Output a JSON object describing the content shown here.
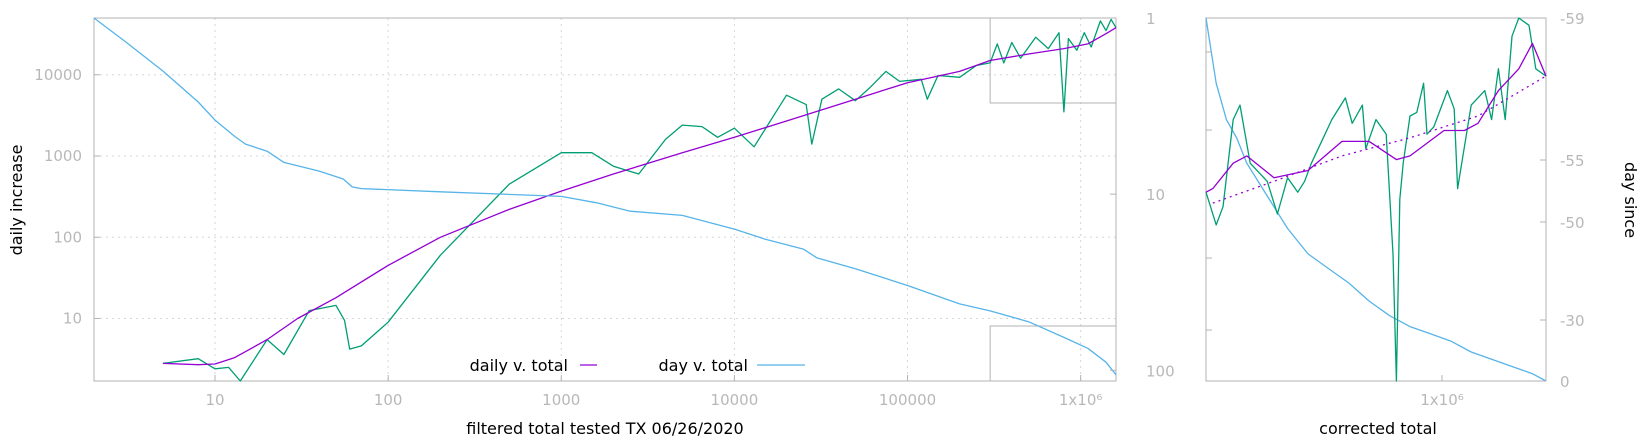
{
  "colors": {
    "daily": "#9400d3",
    "day": "#56b4e9",
    "raw": "#009e73",
    "frame": "#b3b3b3",
    "grid": "#d6d6d6",
    "tick": "#b8b8b8"
  },
  "chart_data": [
    {
      "type": "line",
      "panel": "main",
      "xlabel": "filtered total tested TX 06/26/2020",
      "ylabel": "daily increase",
      "y2label": "",
      "x_scale": "log",
      "y_scale": "log",
      "y2_scale": "log",
      "xlim": [
        2,
        1600000
      ],
      "ylim": [
        1.7,
        50000
      ],
      "y2lim": [
        1,
        115
      ],
      "x_ticks": [
        {
          "value": 10,
          "label": "10"
        },
        {
          "value": 100,
          "label": "100"
        },
        {
          "value": 1000,
          "label": "1000"
        },
        {
          "value": 10000,
          "label": "10000"
        },
        {
          "value": 100000,
          "label": "100000"
        },
        {
          "value": 1000000,
          "label": "1x10⁶"
        }
      ],
      "y_ticks": [
        {
          "value": 10,
          "label": "10"
        },
        {
          "value": 100,
          "label": "100"
        },
        {
          "value": 1000,
          "label": "1000"
        },
        {
          "value": 10000,
          "label": "10000"
        }
      ],
      "y2_ticks": [
        {
          "value": 1,
          "label": "1"
        },
        {
          "value": 10,
          "label": "10"
        },
        {
          "value": 100,
          "label": "100"
        }
      ],
      "grid": true,
      "legend_position": "bottom-center",
      "series": [
        {
          "name": "daily v. total",
          "axis": "left",
          "color": "#9400d3",
          "points": [
            [
              5,
              2.8
            ],
            [
              8,
              2.7
            ],
            [
              10,
              2.75
            ],
            [
              13,
              3.3
            ],
            [
              20,
              5.5
            ],
            [
              30,
              10
            ],
            [
              50,
              18
            ],
            [
              100,
              45
            ],
            [
              200,
              100
            ],
            [
              500,
              220
            ],
            [
              1000,
              370
            ],
            [
              2000,
              600
            ],
            [
              5000,
              1100
            ],
            [
              10000,
              1700
            ],
            [
              20000,
              2700
            ],
            [
              50000,
              5000
            ],
            [
              100000,
              8000
            ],
            [
              200000,
              11000
            ],
            [
              300000,
              15000
            ],
            [
              500000,
              18000
            ],
            [
              800000,
              21000
            ],
            [
              1100000,
              24000
            ],
            [
              1400000,
              32000
            ],
            [
              1600000,
              38000
            ]
          ]
        },
        {
          "name": "day v. total",
          "axis": "right",
          "color": "#56b4e9",
          "points": [
            [
              2,
              1
            ],
            [
              3,
              1.35
            ],
            [
              5,
              2
            ],
            [
              8,
              3
            ],
            [
              10,
              3.8
            ],
            [
              13,
              4.7
            ],
            [
              15,
              5.2
            ],
            [
              20,
              5.7
            ],
            [
              25,
              6.6
            ],
            [
              40,
              7.4
            ],
            [
              55,
              8.2
            ],
            [
              62,
              9.1
            ],
            [
              70,
              9.3
            ],
            [
              200,
              9.7
            ],
            [
              1000,
              10.3
            ],
            [
              1600,
              11.2
            ],
            [
              2500,
              12.5
            ],
            [
              5000,
              13.2
            ],
            [
              10000,
              15.8
            ],
            [
              15000,
              18
            ],
            [
              25000,
              20.5
            ],
            [
              30000,
              23
            ],
            [
              50000,
              26.5
            ],
            [
              100000,
              33
            ],
            [
              200000,
              42
            ],
            [
              300000,
              46
            ],
            [
              500000,
              53
            ],
            [
              800000,
              65
            ],
            [
              1100000,
              75
            ],
            [
              1400000,
              90
            ],
            [
              1600000,
              106
            ]
          ]
        },
        {
          "name": "",
          "axis": "left",
          "color": "#009e73",
          "points": [
            [
              5,
              2.8
            ],
            [
              8,
              3.2
            ],
            [
              10,
              2.4
            ],
            [
              12,
              2.5
            ],
            [
              14,
              1.7
            ],
            [
              20,
              5.5
            ],
            [
              25,
              3.6
            ],
            [
              35,
              12.5
            ],
            [
              50,
              14.5
            ],
            [
              56,
              9.5
            ],
            [
              60,
              4.2
            ],
            [
              70,
              4.6
            ],
            [
              100,
              9
            ],
            [
              200,
              60
            ],
            [
              500,
              450
            ],
            [
              1000,
              1100
            ],
            [
              1500,
              1100
            ],
            [
              2000,
              750
            ],
            [
              2800,
              600
            ],
            [
              4000,
              1600
            ],
            [
              5000,
              2400
            ],
            [
              6500,
              2300
            ],
            [
              8000,
              1700
            ],
            [
              10000,
              2200
            ],
            [
              13000,
              1300
            ],
            [
              20000,
              5600
            ],
            [
              26000,
              4300
            ],
            [
              28000,
              1400
            ],
            [
              32000,
              5000
            ],
            [
              40000,
              6700
            ],
            [
              50000,
              4800
            ],
            [
              60000,
              6800
            ],
            [
              75000,
              11000
            ],
            [
              90000,
              8300
            ],
            [
              120000,
              8800
            ],
            [
              130000,
              5000
            ],
            [
              150000,
              9800
            ],
            [
              200000,
              9300
            ],
            [
              250000,
              13000
            ],
            [
              300000,
              14000
            ],
            [
              330000,
              24000
            ],
            [
              360000,
              14000
            ],
            [
              400000,
              25000
            ],
            [
              450000,
              16000
            ],
            [
              550000,
              29000
            ],
            [
              650000,
              21000
            ],
            [
              750000,
              33000
            ],
            [
              800000,
              3500
            ],
            [
              850000,
              28000
            ],
            [
              950000,
              20000
            ],
            [
              1050000,
              33000
            ],
            [
              1150000,
              22000
            ],
            [
              1300000,
              46000
            ],
            [
              1400000,
              35000
            ],
            [
              1500000,
              48000
            ],
            [
              1600000,
              38000
            ]
          ]
        }
      ]
    },
    {
      "type": "line",
      "panel": "inset",
      "xlabel": "corrected total",
      "y2label": "day since",
      "x_scale": "log",
      "x_ticks": [
        {
          "value": 1000000,
          "label": "1x10⁶"
        }
      ],
      "y2_ticks": [
        {
          "value": -59,
          "label": "-59"
        },
        {
          "value": -55,
          "label": "-55"
        },
        {
          "value": -50,
          "label": "-50"
        },
        {
          "value": -30,
          "label": "-30"
        },
        {
          "value": 0,
          "label": "0"
        }
      ],
      "series": [
        {
          "name": "",
          "color": "#9400d3",
          "dash": "solid",
          "points": [
            [
              0,
              0.52
            ],
            [
              0.02,
              0.53
            ],
            [
              0.08,
              0.6
            ],
            [
              0.12,
              0.62
            ],
            [
              0.2,
              0.56
            ],
            [
              0.3,
              0.58
            ],
            [
              0.4,
              0.66
            ],
            [
              0.48,
              0.66
            ],
            [
              0.56,
              0.61
            ],
            [
              0.6,
              0.62
            ],
            [
              0.7,
              0.69
            ],
            [
              0.76,
              0.69
            ],
            [
              0.8,
              0.71
            ],
            [
              0.86,
              0.8
            ],
            [
              0.92,
              0.86
            ],
            [
              0.96,
              0.93
            ],
            [
              1,
              0.84
            ]
          ]
        },
        {
          "name": "",
          "color": "#9400d3",
          "dash": "dotted",
          "points": [
            [
              0.02,
              0.49
            ],
            [
              0.2,
              0.55
            ],
            [
              0.4,
              0.62
            ],
            [
              0.6,
              0.67
            ],
            [
              0.8,
              0.73
            ],
            [
              1,
              0.84
            ]
          ]
        },
        {
          "name": "",
          "color": "#009e73",
          "points": [
            [
              0,
              0.52
            ],
            [
              0.03,
              0.43
            ],
            [
              0.05,
              0.48
            ],
            [
              0.08,
              0.72
            ],
            [
              0.1,
              0.76
            ],
            [
              0.13,
              0.6
            ],
            [
              0.18,
              0.55
            ],
            [
              0.21,
              0.46
            ],
            [
              0.24,
              0.56
            ],
            [
              0.27,
              0.52
            ],
            [
              0.29,
              0.55
            ],
            [
              0.31,
              0.6
            ],
            [
              0.35,
              0.68
            ],
            [
              0.37,
              0.72
            ],
            [
              0.41,
              0.78
            ],
            [
              0.43,
              0.71
            ],
            [
              0.46,
              0.76
            ],
            [
              0.47,
              0.64
            ],
            [
              0.5,
              0.72
            ],
            [
              0.53,
              0.68
            ],
            [
              0.55,
              0.35
            ],
            [
              0.56,
              0.0
            ],
            [
              0.57,
              0.5
            ],
            [
              0.58,
              0.6
            ],
            [
              0.6,
              0.73
            ],
            [
              0.62,
              0.74
            ],
            [
              0.64,
              0.82
            ],
            [
              0.65,
              0.68
            ],
            [
              0.67,
              0.7
            ],
            [
              0.71,
              0.8
            ],
            [
              0.73,
              0.75
            ],
            [
              0.74,
              0.53
            ],
            [
              0.78,
              0.76
            ],
            [
              0.82,
              0.8
            ],
            [
              0.84,
              0.72
            ],
            [
              0.86,
              0.86
            ],
            [
              0.88,
              0.72
            ],
            [
              0.9,
              0.95
            ],
            [
              0.92,
              1.0
            ],
            [
              0.95,
              0.98
            ],
            [
              0.97,
              0.86
            ],
            [
              1,
              0.84
            ]
          ]
        },
        {
          "name": "",
          "color": "#56b4e9",
          "points": [
            [
              0,
              1.0
            ],
            [
              0.03,
              0.82
            ],
            [
              0.06,
              0.72
            ],
            [
              0.09,
              0.67
            ],
            [
              0.12,
              0.6
            ],
            [
              0.16,
              0.54
            ],
            [
              0.2,
              0.48
            ],
            [
              0.24,
              0.42
            ],
            [
              0.3,
              0.35
            ],
            [
              0.36,
              0.31
            ],
            [
              0.42,
              0.27
            ],
            [
              0.48,
              0.22
            ],
            [
              0.54,
              0.18
            ],
            [
              0.6,
              0.15
            ],
            [
              0.66,
              0.13
            ],
            [
              0.72,
              0.11
            ],
            [
              0.78,
              0.08
            ],
            [
              0.84,
              0.06
            ],
            [
              0.9,
              0.04
            ],
            [
              0.96,
              0.02
            ],
            [
              1,
              0.0
            ]
          ]
        }
      ]
    }
  ]
}
